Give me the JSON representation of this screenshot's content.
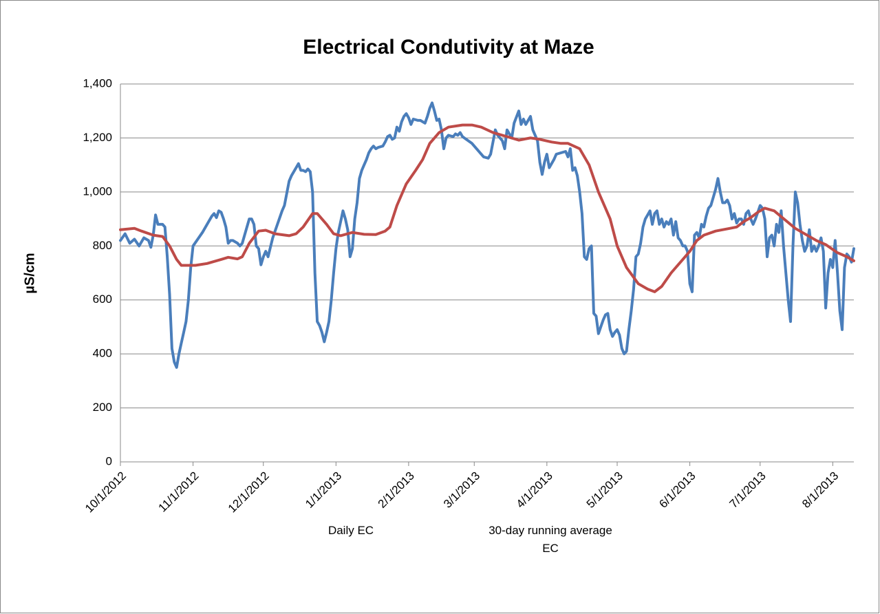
{
  "chart_data": {
    "type": "line",
    "title": "Electrical Condutivity at Maze",
    "y_label": "µS/cm",
    "xlim": [
      "10/1/2012",
      "8/10/2013"
    ],
    "xticks": [
      "10/1/2012",
      "11/1/2012",
      "12/1/2012",
      "1/1/2013",
      "2/1/2013",
      "3/1/2013",
      "4/1/2013",
      "5/1/2013",
      "6/1/2013",
      "7/1/2013",
      "8/1/2013"
    ],
    "ylim": [
      0,
      1400
    ],
    "yticks": [
      0,
      200,
      400,
      600,
      800,
      {
        "value": 1000,
        "label": "1,000"
      },
      {
        "value": 1200,
        "label": "1,200"
      },
      {
        "value": 1400,
        "label": "1,400"
      }
    ],
    "grid": true,
    "legend": "bottom",
    "series": [
      {
        "name": "Daily EC",
        "color": "#4a7ebb",
        "x": [
          "10/1/2012",
          "10/3/2012",
          "10/5/2012",
          "10/7/2012",
          "10/9/2012",
          "10/11/2012",
          "10/13/2012",
          "10/14/2012",
          "10/15/2012",
          "10/16/2012",
          "10/17/2012",
          "10/19/2012",
          "10/20/2012",
          "10/21/2012",
          "10/22/2012",
          "10/23/2012",
          "10/24/2012",
          "10/25/2012",
          "10/26/2012",
          "10/27/2012",
          "10/28/2012",
          "10/29/2012",
          "10/30/2012",
          "10/31/2012",
          "11/1/2012",
          "11/3/2012",
          "11/5/2012",
          "11/7/2012",
          "11/9/2012",
          "11/10/2012",
          "11/11/2012",
          "11/12/2012",
          "11/13/2012",
          "11/14/2012",
          "11/15/2012",
          "11/16/2012",
          "11/17/2012",
          "11/18/2012",
          "11/20/2012",
          "11/21/2012",
          "11/22/2012",
          "11/23/2012",
          "11/24/2012",
          "11/25/2012",
          "11/26/2012",
          "11/27/2012",
          "11/28/2012",
          "11/29/2012",
          "11/30/2012",
          "12/1/2012",
          "12/2/2012",
          "12/3/2012",
          "12/5/2012",
          "12/7/2012",
          "12/9/2012",
          "12/10/2012",
          "12/12/2012",
          "12/13/2012",
          "12/15/2012",
          "12/16/2012",
          "12/17/2012",
          "12/18/2012",
          "12/19/2012",
          "12/20/2012",
          "12/21/2012",
          "12/22/2012",
          "12/23/2012",
          "12/24/2012",
          "12/25/2012",
          "12/26/2012",
          "12/27/2012",
          "12/28/2012",
          "12/29/2012",
          "12/30/2012",
          "12/31/2012",
          "1/1/2013",
          "1/2/2013",
          "1/3/2013",
          "1/4/2013",
          "1/5/2013",
          "1/6/2013",
          "1/7/2013",
          "1/8/2013",
          "1/9/2013",
          "1/10/2013",
          "1/11/2013",
          "1/12/2013",
          "1/13/2013",
          "1/14/2013",
          "1/15/2013",
          "1/16/2013",
          "1/17/2013",
          "1/18/2013",
          "1/19/2013",
          "1/21/2013",
          "1/22/2013",
          "1/23/2013",
          "1/24/2013",
          "1/25/2013",
          "1/26/2013",
          "1/27/2013",
          "1/28/2013",
          "1/29/2013",
          "1/30/2013",
          "1/31/2013",
          "2/1/2013",
          "2/2/2013",
          "2/3/2013",
          "2/5/2013",
          "2/6/2013",
          "2/8/2013",
          "2/9/2013",
          "2/10/2013",
          "2/11/2013",
          "2/12/2013",
          "2/13/2013",
          "2/14/2013",
          "2/15/2013",
          "2/16/2013",
          "2/17/2013",
          "2/18/2013",
          "2/20/2013",
          "2/21/2013",
          "2/22/2013",
          "2/23/2013",
          "2/24/2013",
          "2/28/2013",
          "3/5/2013",
          "3/7/2013",
          "3/8/2013",
          "3/10/2013",
          "3/11/2013",
          "3/13/2013",
          "3/14/2013",
          "3/15/2013",
          "3/17/2013",
          "3/18/2013",
          "3/20/2013",
          "3/21/2013",
          "3/22/2013",
          "3/23/2013",
          "3/25/2013",
          "3/26/2013",
          "3/28/2013",
          "3/29/2013",
          "3/30/2013",
          "3/31/2013",
          "4/1/2013",
          "4/2/2013",
          "4/4/2013",
          "4/5/2013",
          "4/7/2013",
          "4/9/2013",
          "4/10/2013",
          "4/11/2013",
          "4/12/2013",
          "4/13/2013",
          "4/14/2013",
          "4/15/2013",
          "4/16/2013",
          "4/17/2013",
          "4/18/2013",
          "4/19/2013",
          "4/20/2013",
          "4/21/2013",
          "4/22/2013",
          "4/23/2013",
          "4/24/2013",
          "4/25/2013",
          "4/26/2013",
          "4/27/2013",
          "4/28/2013",
          "4/29/2013",
          "4/30/2013",
          "5/1/2013",
          "5/2/2013",
          "5/3/2013",
          "5/4/2013",
          "5/5/2013",
          "5/6/2013",
          "5/7/2013",
          "5/8/2013",
          "5/9/2013",
          "5/10/2013",
          "5/11/2013",
          "5/12/2013",
          "5/13/2013",
          "5/14/2013",
          "5/15/2013",
          "5/16/2013",
          "5/17/2013",
          "5/18/2013",
          "5/19/2013",
          "5/20/2013",
          "5/21/2013",
          "5/22/2013",
          "5/23/2013",
          "5/24/2013",
          "5/25/2013",
          "5/26/2013",
          "5/27/2013",
          "5/28/2013",
          "5/29/2013",
          "5/30/2013",
          "5/31/2013",
          "6/1/2013",
          "6/2/2013",
          "6/3/2013",
          "6/4/2013",
          "6/5/2013",
          "6/6/2013",
          "6/7/2013",
          "6/8/2013",
          "6/9/2013",
          "6/10/2013",
          "6/11/2013",
          "6/12/2013",
          "6/13/2013",
          "6/14/2013",
          "6/15/2013",
          "6/16/2013",
          "6/17/2013",
          "6/18/2013",
          "6/19/2013",
          "6/20/2013",
          "6/21/2013",
          "6/22/2013",
          "6/23/2013",
          "6/24/2013",
          "6/25/2013",
          "6/26/2013",
          "6/27/2013",
          "6/28/2013",
          "6/29/2013",
          "7/1/2013",
          "7/2/2013",
          "7/3/2013",
          "7/4/2013",
          "7/5/2013",
          "7/6/2013",
          "7/7/2013",
          "7/8/2013",
          "7/9/2013",
          "7/10/2013",
          "7/11/2013",
          "7/12/2013",
          "7/13/2013",
          "7/14/2013",
          "7/15/2013",
          "7/16/2013",
          "7/17/2013",
          "7/18/2013",
          "7/19/2013",
          "7/20/2013",
          "7/21/2013",
          "7/22/2013",
          "7/23/2013",
          "7/24/2013",
          "7/25/2013",
          "7/26/2013",
          "7/27/2013",
          "7/28/2013",
          "7/29/2013",
          "7/30/2013",
          "7/31/2013",
          "8/1/2013",
          "8/2/2013",
          "8/3/2013",
          "8/4/2013",
          "8/5/2013",
          "8/6/2013",
          "8/7/2013",
          "8/8/2013",
          "8/9/2013",
          "8/10/2013"
        ],
        "values": [
          820,
          845,
          810,
          825,
          800,
          830,
          820,
          795,
          840,
          915,
          880,
          880,
          870,
          760,
          620,
          420,
          370,
          350,
          400,
          440,
          480,
          520,
          600,
          720,
          800,
          825,
          850,
          880,
          910,
          920,
          905,
          930,
          925,
          900,
          870,
          810,
          820,
          820,
          810,
          800,
          810,
          840,
          870,
          900,
          900,
          880,
          800,
          790,
          730,
          760,
          780,
          760,
          830,
          880,
          930,
          950,
          1040,
          1060,
          1090,
          1105,
          1080,
          1080,
          1075,
          1085,
          1075,
          1000,
          700,
          520,
          505,
          480,
          445,
          480,
          520,
          600,
          700,
          790,
          850,
          890,
          930,
          900,
          860,
          760,
          790,
          900,
          960,
          1050,
          1080,
          1100,
          1120,
          1145,
          1160,
          1170,
          1160,
          1165,
          1170,
          1185,
          1205,
          1210,
          1195,
          1200,
          1240,
          1225,
          1260,
          1280,
          1290,
          1275,
          1250,
          1270,
          1265,
          1265,
          1255,
          1280,
          1310,
          1330,
          1300,
          1265,
          1270,
          1230,
          1160,
          1200,
          1210,
          1205,
          1215,
          1210,
          1220,
          1205,
          1180,
          1130,
          1125,
          1140,
          1230,
          1210,
          1190,
          1160,
          1230,
          1200,
          1255,
          1300,
          1250,
          1270,
          1250,
          1280,
          1230,
          1190,
          1110,
          1065,
          1110,
          1140,
          1090,
          1120,
          1140,
          1145,
          1150,
          1130,
          1160,
          1080,
          1090,
          1060,
          1000,
          920,
          760,
          750,
          790,
          800,
          550,
          540,
          475,
          500,
          525,
          545,
          550,
          490,
          465,
          480,
          490,
          470,
          420,
          400,
          410,
          490,
          560,
          640,
          760,
          770,
          810,
          870,
          900,
          915,
          930,
          880,
          920,
          930,
          880,
          900,
          870,
          890,
          880,
          900,
          840,
          890,
          830,
          820,
          800,
          800,
          780,
          660,
          630,
          840,
          850,
          830,
          880,
          870,
          910,
          940,
          950,
          980,
          1010,
          1050,
          1000,
          960,
          960,
          970,
          950,
          900,
          920,
          885,
          900,
          900,
          880,
          920,
          930,
          900,
          880,
          900,
          950,
          940,
          900,
          760,
          830,
          840,
          800,
          880,
          850,
          930,
          800,
          700,
          600,
          520,
          800,
          1000,
          960,
          880,
          820,
          780,
          800,
          860,
          780,
          800,
          780,
          800,
          830,
          780,
          570,
          700,
          750,
          720,
          820,
          700,
          560,
          490,
          720,
          770,
          760,
          740,
          790
        ]
      },
      {
        "name": "30-day running average EC",
        "color": "#be4b48",
        "x": [
          "10/1/2012",
          "10/7/2012",
          "10/10/2012",
          "10/15/2012",
          "10/19/2012",
          "10/22/2012",
          "10/25/2012",
          "10/27/2012",
          "11/2/2012",
          "11/7/2012",
          "11/13/2012",
          "11/16/2012",
          "11/20/2012",
          "11/22/2012",
          "11/25/2012",
          "11/29/2012",
          "12/2/2012",
          "12/6/2012",
          "12/12/2012",
          "12/15/2012",
          "12/18/2012",
          "12/22/2012",
          "12/24/2012",
          "12/28/2012",
          "12/31/2012",
          "1/3/2013",
          "1/8/2013",
          "1/13/2013",
          "1/18/2013",
          "1/22/2013",
          "1/24/2013",
          "1/27/2013",
          "1/31/2013",
          "2/4/2013",
          "2/7/2013",
          "2/10/2013",
          "2/14/2013",
          "2/18/2013",
          "2/24/2013",
          "2/28/2013",
          "3/4/2013",
          "3/9/2013",
          "3/15/2013",
          "3/20/2013",
          "3/25/2013",
          "3/29/2013",
          "4/3/2013",
          "4/7/2013",
          "4/10/2013",
          "4/15/2013",
          "4/19/2013",
          "4/23/2013",
          "4/28/2013",
          "5/1/2013",
          "5/5/2013",
          "5/10/2013",
          "5/14/2013",
          "5/17/2013",
          "5/20/2013",
          "5/24/2013",
          "5/29/2013",
          "6/1/2013",
          "6/4/2013",
          "6/7/2013",
          "6/12/2013",
          "6/18/2013",
          "6/21/2013",
          "6/24/2013",
          "6/27/2013",
          "6/30/2013",
          "7/3/2013",
          "7/7/2013",
          "7/16/2013",
          "7/19/2013",
          "7/25/2013",
          "7/29/2013",
          "8/3/2013",
          "8/7/2013",
          "8/10/2013"
        ],
        "values": [
          860,
          865,
          855,
          840,
          835,
          800,
          750,
          728,
          728,
          735,
          750,
          758,
          752,
          760,
          810,
          855,
          858,
          845,
          838,
          845,
          870,
          920,
          920,
          880,
          845,
          838,
          850,
          843,
          842,
          855,
          870,
          950,
          1030,
          1080,
          1120,
          1180,
          1220,
          1240,
          1248,
          1248,
          1240,
          1220,
          1205,
          1192,
          1200,
          1195,
          1185,
          1180,
          1180,
          1160,
          1100,
          1000,
          900,
          800,
          720,
          660,
          640,
          630,
          650,
          700,
          750,
          780,
          820,
          840,
          855,
          865,
          870,
          890,
          905,
          925,
          940,
          930,
          865,
          850,
          820,
          805,
          775,
          760,
          745
        ]
      }
    ]
  }
}
